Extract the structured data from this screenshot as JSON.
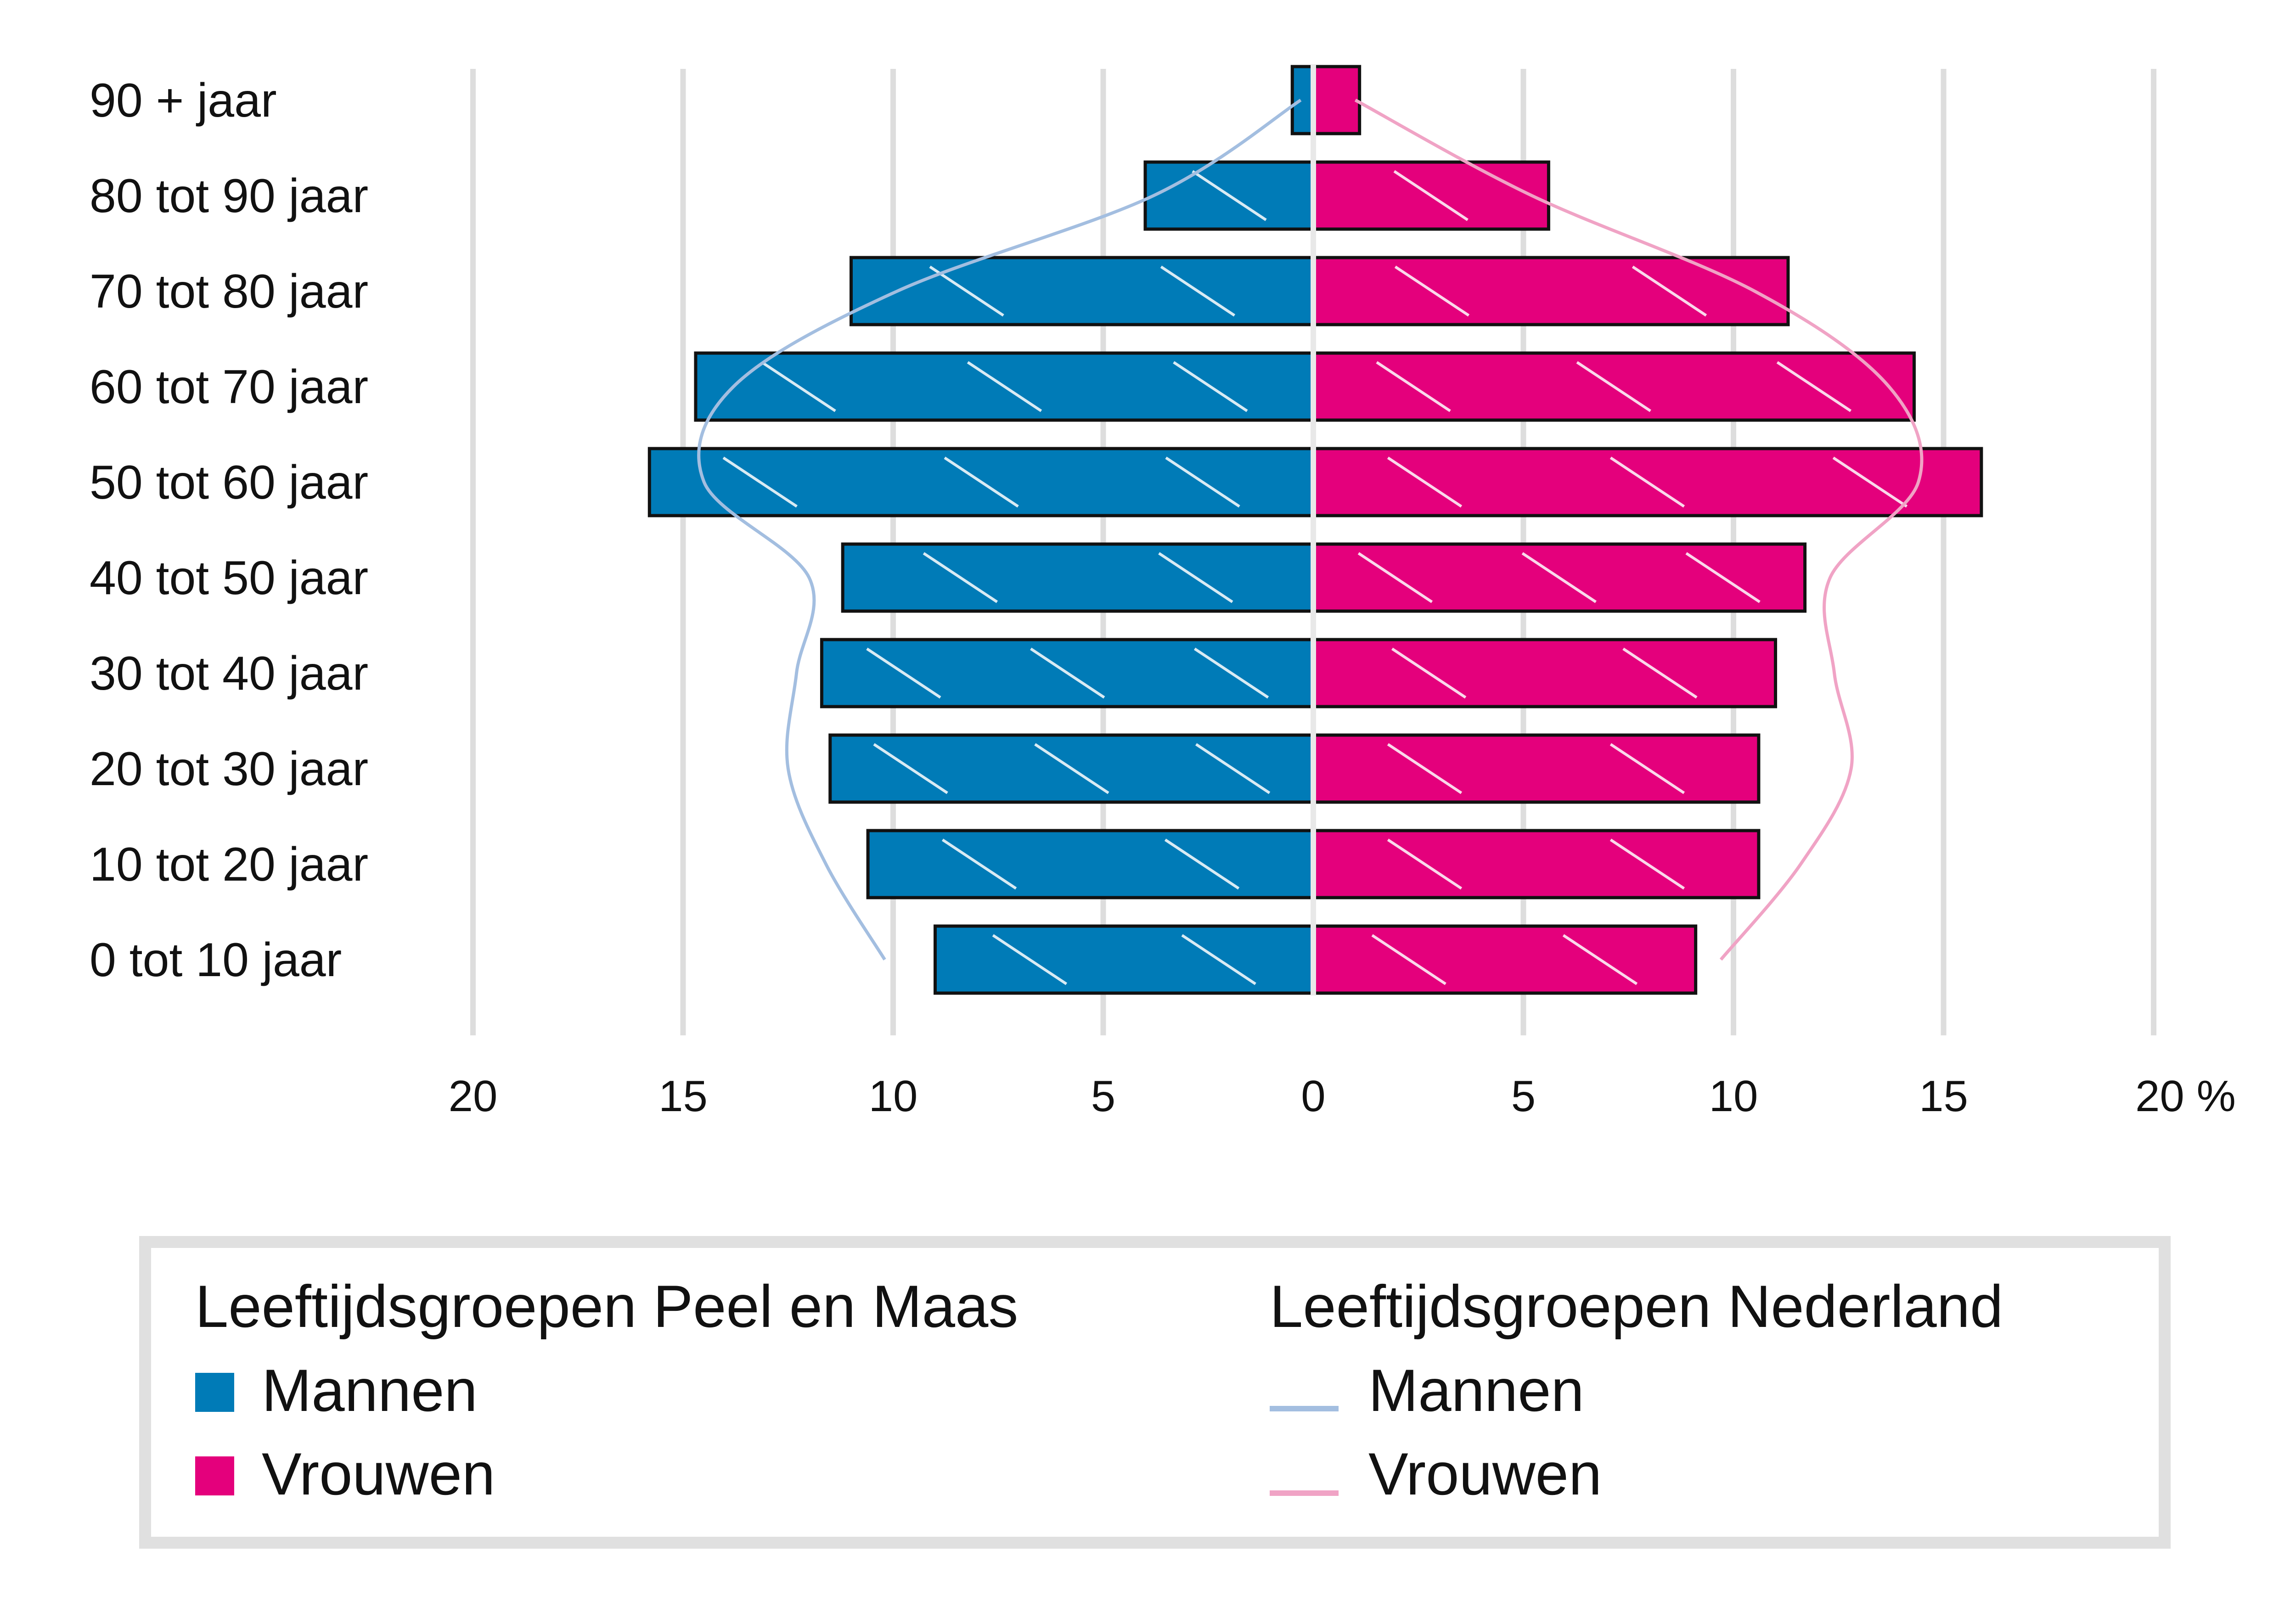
{
  "chart_data": {
    "type": "bar",
    "categories": [
      "90 + jaar",
      "80 tot 90 jaar",
      "70 tot 80 jaar",
      "60 tot 70 jaar",
      "50 tot 60 jaar",
      "40 tot 50 jaar",
      "30 tot 40 jaar",
      "20 tot 30 jaar",
      "10 tot 20 jaar",
      "0 tot 10 jaar"
    ],
    "series": [
      {
        "name": "Mannen",
        "group": "Leeftijdsgroepen Peel en Maas",
        "kind": "bar",
        "side": "left",
        "color": "#007bb7",
        "values": [
          0.5,
          4.0,
          11.0,
          14.7,
          15.8,
          11.2,
          11.7,
          11.5,
          10.6,
          9.0
        ]
      },
      {
        "name": "Vrouwen",
        "group": "Leeftijdsgroepen Peel en Maas",
        "kind": "bar",
        "side": "right",
        "color": "#e4007c",
        "values": [
          1.1,
          5.6,
          11.3,
          14.3,
          15.9,
          11.7,
          11.0,
          10.6,
          10.6,
          9.1
        ]
      },
      {
        "name": "Mannen",
        "group": "Leeftijdsgroepen Nederland",
        "kind": "line",
        "side": "left",
        "color": "#a3bee0",
        "values": [
          0.3,
          3.8,
          9.9,
          13.8,
          14.5,
          12.0,
          12.3,
          12.5,
          11.6,
          10.2
        ]
      },
      {
        "name": "Vrouwen",
        "group": "Leeftijdsgroepen Nederland",
        "kind": "line",
        "side": "right",
        "color": "#f0a3c5",
        "values": [
          1.0,
          5.2,
          10.5,
          13.7,
          14.4,
          12.3,
          12.4,
          12.8,
          11.6,
          9.7
        ]
      }
    ],
    "x_ticks": [
      "20",
      "15",
      "10",
      "5",
      "0",
      "5",
      "10",
      "15",
      "20 %"
    ],
    "xlim": [
      -20,
      20
    ],
    "grid": true,
    "legend": {
      "placement": "bottom",
      "groups": [
        {
          "title": "Leeftijdsgroepen Peel en Maas",
          "items": [
            "Mannen",
            "Vrouwen"
          ]
        },
        {
          "title": "Leeftijdsgroepen Nederland",
          "items": [
            "Mannen",
            "Vrouwen"
          ]
        }
      ]
    }
  },
  "colors": {
    "male_bar": "#007bb7",
    "female_bar": "#e4007c",
    "male_line": "#a3bee0",
    "female_line": "#f0a3c5",
    "grid": "#dddddd",
    "legend_border": "#e0e0e0"
  }
}
